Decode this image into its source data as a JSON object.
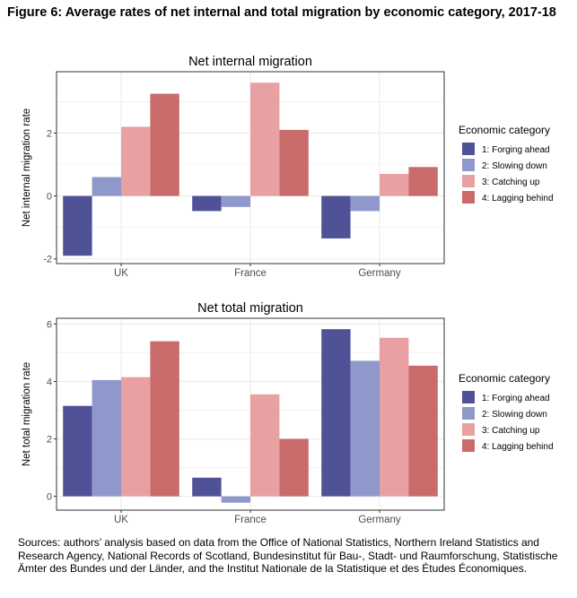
{
  "figure_title": "Figure 6: Average rates of net internal and total migration by economic category, 2017-18",
  "sources": "Sources: authors’ analysis based on data from the Office of National Statistics, Northern Ireland Statistics and Research Agency, National Records of Scotland, Bundesinstitut für Bau-, Stadt- und Raumforschung, Statistische Ämter des Bundes und der Länder, and the Institut Nationale de la Statistique et des Études Économiques.",
  "colors": {
    "forging_ahead": "#4f5297",
    "slowing_down": "#8f98cb",
    "catching_up": "#e8a0a3",
    "lagging_behind": "#c96b6b",
    "grid": "#ebebeb",
    "frame": "#333333"
  },
  "chart_data": [
    {
      "type": "bar",
      "title": "Net internal migration",
      "xlabel": "",
      "ylabel": "Net internal migration rate",
      "categories": [
        "UK",
        "France",
        "Germany"
      ],
      "ylim": [
        -2.15,
        3.95
      ],
      "yticks": [
        -2,
        0,
        2
      ],
      "ytick_labels": [
        "-2",
        "0",
        "2"
      ],
      "grid": true,
      "legend_title": "Economic category",
      "legend_position": "right",
      "series": [
        {
          "name": "1: Forging ahead",
          "color_key": "forging_ahead",
          "values": [
            -1.9,
            -0.48,
            -1.35
          ]
        },
        {
          "name": "2: Slowing down",
          "color_key": "slowing_down",
          "values": [
            0.6,
            -0.35,
            -0.48
          ]
        },
        {
          "name": "3: Catching up",
          "color_key": "catching_up",
          "values": [
            2.2,
            3.6,
            0.7
          ]
        },
        {
          "name": "4: Lagging behind",
          "color_key": "lagging_behind",
          "values": [
            3.25,
            2.1,
            0.92
          ]
        }
      ]
    },
    {
      "type": "bar",
      "title": "Net total migration",
      "xlabel": "",
      "ylabel": "Net total migration rate",
      "categories": [
        "UK",
        "France",
        "Germany"
      ],
      "ylim": [
        -0.48,
        6.2
      ],
      "yticks": [
        0,
        2,
        4,
        6
      ],
      "ytick_labels": [
        "0",
        "2",
        "4",
        "6"
      ],
      "grid": true,
      "legend_title": "Economic category",
      "legend_position": "right",
      "series": [
        {
          "name": "1: Forging ahead",
          "color_key": "forging_ahead",
          "values": [
            3.15,
            0.65,
            5.82
          ]
        },
        {
          "name": "2: Slowing down",
          "color_key": "slowing_down",
          "values": [
            4.05,
            -0.22,
            4.72
          ]
        },
        {
          "name": "3: Catching up",
          "color_key": "catching_up",
          "values": [
            4.15,
            3.55,
            5.52
          ]
        },
        {
          "name": "4: Lagging behind",
          "color_key": "lagging_behind",
          "values": [
            5.4,
            2.0,
            4.55
          ]
        }
      ]
    }
  ]
}
